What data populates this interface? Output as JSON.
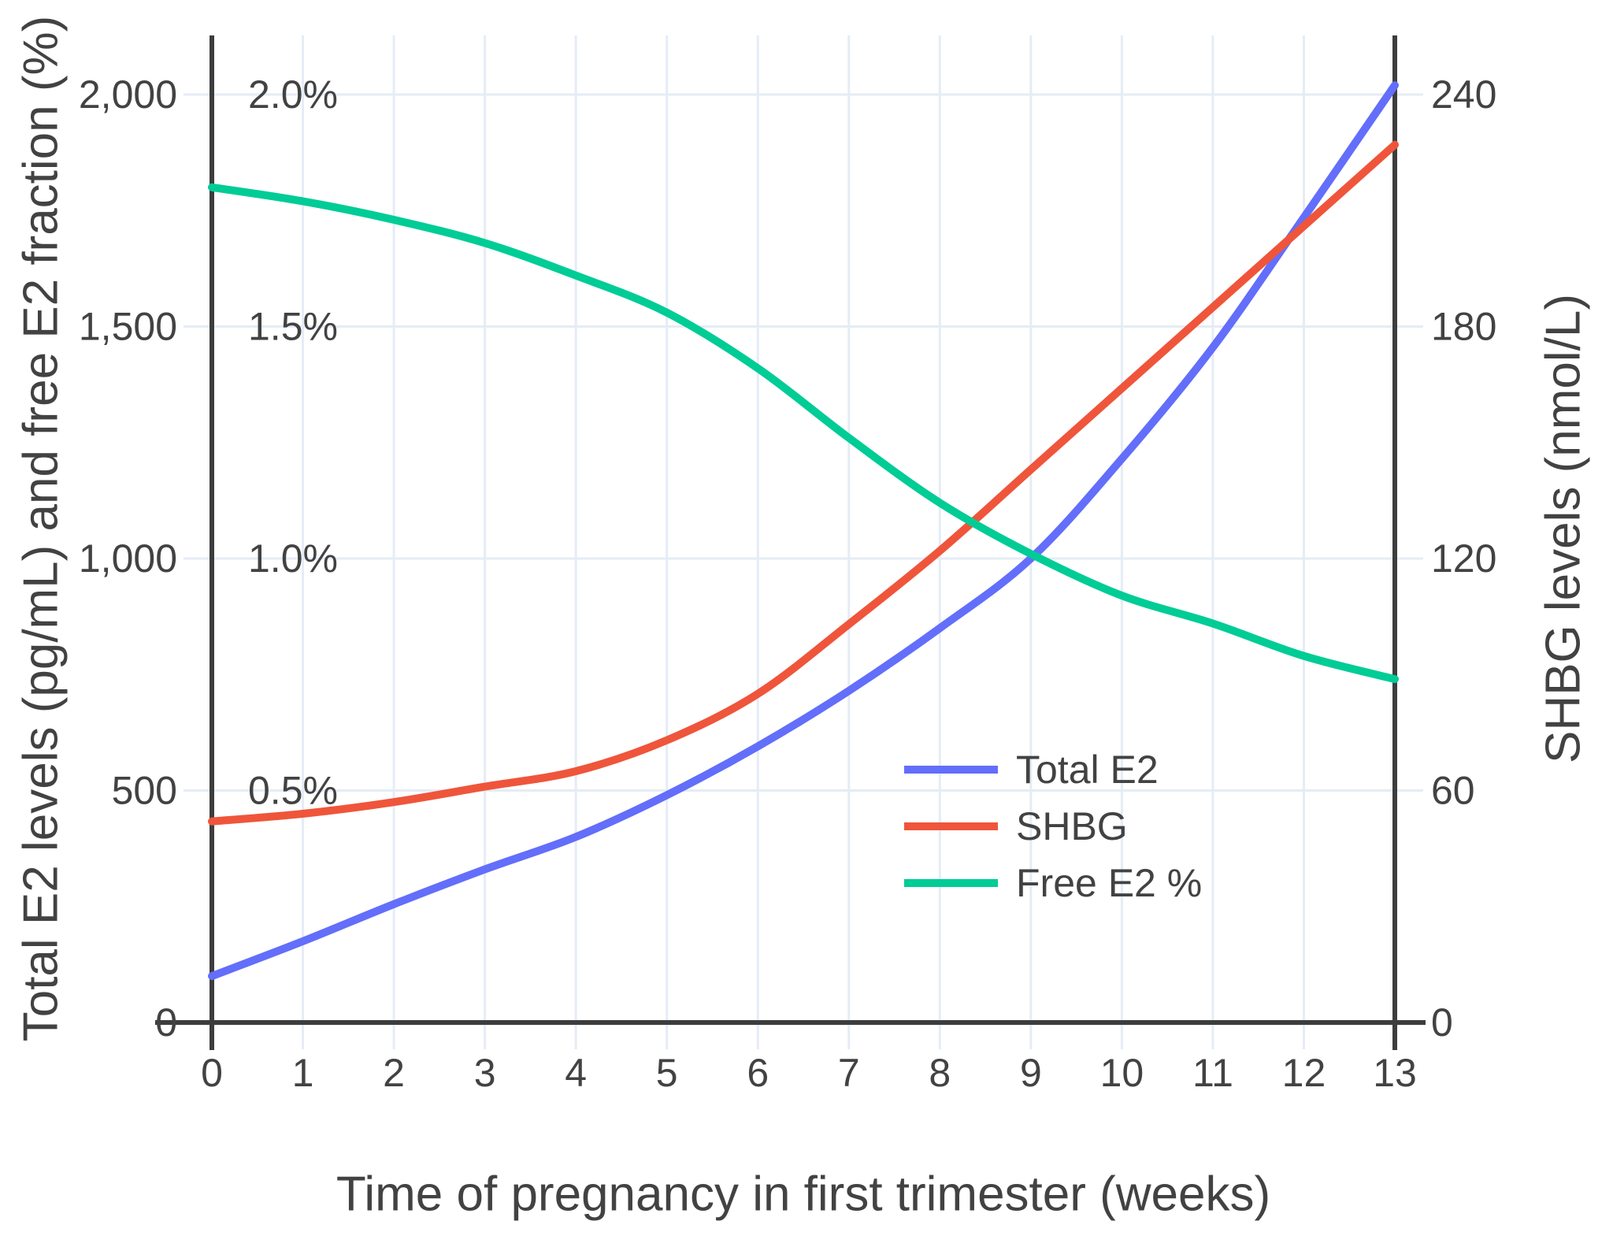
{
  "chart_data": {
    "type": "line",
    "title": "",
    "x": [
      0,
      1,
      2,
      3,
      4,
      5,
      6,
      7,
      8,
      9,
      10,
      11,
      12,
      13
    ],
    "x_axis": {
      "title": "Time of pregnancy in first trimester (weeks)",
      "tick_labels": [
        "0",
        "1",
        "2",
        "3",
        "4",
        "5",
        "6",
        "7",
        "8",
        "9",
        "10",
        "11",
        "12",
        "13"
      ],
      "tick_values": [
        0,
        1,
        2,
        3,
        4,
        5,
        6,
        7,
        8,
        9,
        10,
        11,
        12,
        13
      ],
      "range": [
        0,
        13
      ]
    },
    "left_axis": {
      "title": "Total E2 levels (pg/mL) and free E2 fraction (%)",
      "tick_labels": [
        "0",
        "500",
        "1,000",
        "1,500",
        "2,000"
      ],
      "tick_values": [
        0,
        500,
        1000,
        1500,
        2000
      ],
      "percent_tick_labels": [
        "0.5%",
        "1.0%",
        "1.5%",
        "2.0%"
      ],
      "percent_tick_values": [
        0.5,
        1.0,
        1.5,
        2.0
      ],
      "range": [
        0,
        2128
      ]
    },
    "right_axis": {
      "title": "SHBG levels (nmol/L)",
      "tick_labels": [
        "0",
        "60",
        "120",
        "180",
        "240"
      ],
      "tick_values": [
        0,
        60,
        120,
        180,
        240
      ],
      "range": [
        0,
        255
      ]
    },
    "series": [
      {
        "name": "Total E2",
        "axis": "left",
        "unit": "pg/mL",
        "color": "#636efa",
        "values": [
          100,
          175,
          255,
          330,
          400,
          490,
          595,
          715,
          850,
          1000,
          1215,
          1455,
          1735,
          2020
        ]
      },
      {
        "name": "SHBG",
        "axis": "right",
        "unit": "nmol/L",
        "color": "#ef553b",
        "values": [
          52,
          54,
          57,
          61,
          65,
          73,
          85,
          103,
          122,
          143,
          164,
          185,
          206,
          227
        ]
      },
      {
        "name": "Free E2 %",
        "axis": "left_percent",
        "unit": "%",
        "color": "#00cc96",
        "values": [
          1.8,
          1.77,
          1.73,
          1.68,
          1.61,
          1.53,
          1.41,
          1.26,
          1.12,
          1.01,
          0.92,
          0.86,
          0.79,
          0.74
        ]
      }
    ],
    "legend_position": "inside-bottom-right",
    "grid": true,
    "colors": {
      "grid": "#e5ecf6",
      "axis_line": "#3d3d3d",
      "text": "#424242",
      "background": "#ffffff"
    }
  }
}
